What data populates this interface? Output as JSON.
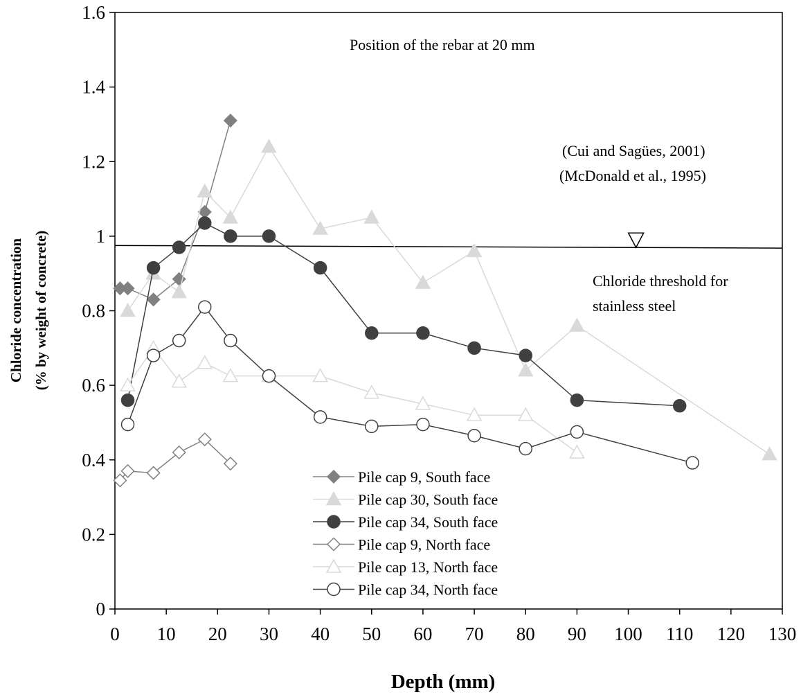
{
  "chart_data": {
    "type": "line",
    "xlabel": "Depth (mm)",
    "ylabel_line1": "Chloride concentration",
    "ylabel_line2": "(% by weight of concrete)",
    "xlim": [
      0,
      130
    ],
    "ylim": [
      0,
      1.6
    ],
    "xticks": [
      0,
      10,
      20,
      30,
      40,
      50,
      60,
      70,
      80,
      90,
      100,
      110,
      120,
      130
    ],
    "yticks": [
      0,
      0.2,
      0.4,
      0.6,
      0.8,
      1,
      1.2,
      1.4,
      1.6
    ],
    "grid": false,
    "legend_position": "bottom-center",
    "annotations": {
      "rebar": "Position of the rebar at 20 mm",
      "cite1": "(Cui and Sagües, 2001)",
      "cite2": "(McDonald et al., 1995)",
      "threshold_line1": "Chloride threshold for",
      "threshold_line2": "stainless steel"
    },
    "threshold_line": {
      "x": [
        0,
        130
      ],
      "y": [
        0.975,
        0.968
      ]
    },
    "threshold_marker": {
      "x": 101.5,
      "y": 0.99,
      "symbol": "inverted-triangle"
    },
    "series": [
      {
        "name": "Pile cap 9, South face",
        "marker": "diamond",
        "fill": "#808080",
        "stroke": "#808080",
        "line": "#808080",
        "x": [
          1,
          2.5,
          7.5,
          12.5,
          17.5,
          22.5
        ],
        "y": [
          0.86,
          0.86,
          0.83,
          0.885,
          1.065,
          1.31
        ]
      },
      {
        "name": "Pile cap 30, South face",
        "marker": "triangle",
        "fill": "#d9d9d9",
        "stroke": "#d9d9d9",
        "line": "#d9d9d9",
        "x": [
          2.5,
          7.5,
          12.5,
          17.5,
          22.5,
          30,
          40,
          50,
          60,
          70,
          80,
          90,
          127.5
        ],
        "y": [
          0.8,
          0.9,
          0.85,
          1.12,
          1.05,
          1.24,
          1.02,
          1.05,
          0.875,
          0.96,
          0.64,
          0.76,
          0.415
        ]
      },
      {
        "name": "Pile cap 34, South face",
        "marker": "circle",
        "fill": "#404040",
        "stroke": "#404040",
        "line": "#404040",
        "x": [
          2.5,
          7.5,
          12.5,
          17.5,
          22.5,
          30,
          40,
          50,
          60,
          70,
          80,
          90,
          110
        ],
        "y": [
          0.56,
          0.915,
          0.97,
          1.035,
          1.0,
          1.0,
          0.915,
          0.74,
          0.74,
          0.7,
          0.68,
          0.56,
          0.545
        ]
      },
      {
        "name": "Pile cap 9, North face",
        "marker": "diamond",
        "fill": "#ffffff",
        "stroke": "#808080",
        "line": "#808080",
        "x": [
          1,
          2.5,
          7.5,
          12.5,
          17.5,
          22.5
        ],
        "y": [
          0.345,
          0.37,
          0.365,
          0.42,
          0.455,
          0.39
        ]
      },
      {
        "name": "Pile cap 13, North face",
        "marker": "triangle",
        "fill": "#ffffff",
        "stroke": "#d9d9d9",
        "line": "#d9d9d9",
        "x": [
          2.5,
          7.5,
          12.5,
          17.5,
          22.5,
          30,
          40,
          50,
          60,
          70,
          80,
          90
        ],
        "y": [
          0.6,
          0.7,
          0.61,
          0.66,
          0.625,
          0.625,
          0.625,
          0.58,
          0.55,
          0.52,
          0.52,
          0.42
        ]
      },
      {
        "name": "Pile cap 34, North face",
        "marker": "circle",
        "fill": "#ffffff",
        "stroke": "#404040",
        "line": "#404040",
        "x": [
          2.5,
          7.5,
          12.5,
          17.5,
          22.5,
          30,
          40,
          50,
          60,
          70,
          80,
          90,
          112.5
        ],
        "y": [
          0.495,
          0.68,
          0.72,
          0.81,
          0.72,
          0.625,
          0.515,
          0.49,
          0.495,
          0.465,
          0.43,
          0.475,
          0.392
        ]
      }
    ]
  }
}
